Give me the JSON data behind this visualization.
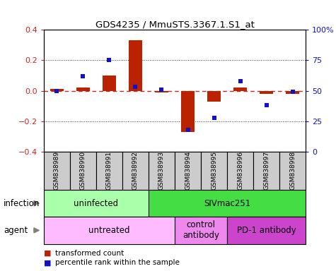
{
  "title": "GDS4235 / MmuSTS.3367.1.S1_at",
  "samples": [
    "GSM838989",
    "GSM838990",
    "GSM838991",
    "GSM838992",
    "GSM838993",
    "GSM838994",
    "GSM838995",
    "GSM838996",
    "GSM838997",
    "GSM838998"
  ],
  "transformed_count": [
    0.01,
    0.02,
    0.1,
    0.33,
    -0.01,
    -0.27,
    -0.07,
    0.02,
    -0.02,
    -0.02
  ],
  "percentile_rank": [
    50,
    62,
    75,
    53,
    51,
    18,
    28,
    58,
    38,
    49
  ],
  "ylim_left": [
    -0.4,
    0.4
  ],
  "ylim_right": [
    0,
    100
  ],
  "yticks_left": [
    -0.4,
    -0.2,
    0.0,
    0.2,
    0.4
  ],
  "yticks_right": [
    0,
    25,
    50,
    75,
    100
  ],
  "yticklabels_right": [
    "0",
    "25",
    "50",
    "75",
    "100%"
  ],
  "bar_color": "#bb2200",
  "dot_color": "#1111cc",
  "zero_line_color": "#cc2222",
  "grid_color": "#333333",
  "sample_box_color": "#cccccc",
  "infection_groups": [
    {
      "label": "uninfected",
      "start": 0,
      "end": 3,
      "color": "#aaffaa"
    },
    {
      "label": "SIVmac251",
      "start": 4,
      "end": 9,
      "color": "#44dd44"
    }
  ],
  "agent_groups": [
    {
      "label": "untreated",
      "start": 0,
      "end": 4,
      "color": "#ffbbff"
    },
    {
      "label": "control\nantibody",
      "start": 5,
      "end": 6,
      "color": "#ee88ee"
    },
    {
      "label": "PD-1 antibody",
      "start": 7,
      "end": 9,
      "color": "#cc44cc"
    }
  ],
  "infection_label": "infection",
  "agent_label": "agent",
  "legend_tc_label": "transformed count",
  "legend_pr_label": "percentile rank within the sample",
  "legend_tc_color": "#bb2200",
  "legend_pr_color": "#1111cc"
}
